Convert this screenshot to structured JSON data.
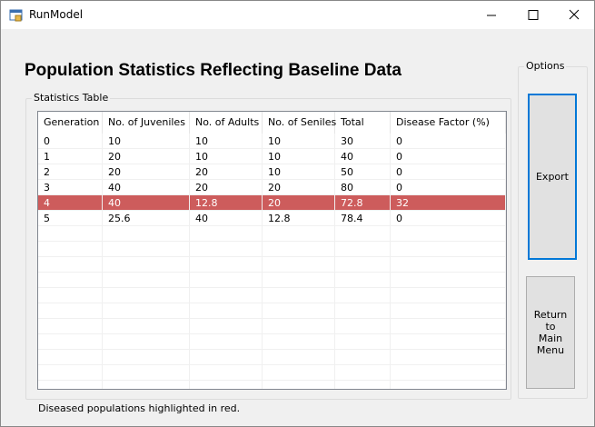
{
  "window": {
    "title": "RunModel"
  },
  "heading": "Population Statistics Reflecting Baseline Data",
  "table_group": {
    "label": "Statistics Table"
  },
  "table": {
    "columns": [
      "Generation",
      "No. of Juveniles",
      "No. of Adults",
      "No. of Seniles",
      "Total",
      "Disease Factor (%)"
    ],
    "rows": [
      [
        "0",
        "10",
        "10",
        "10",
        "30",
        "0"
      ],
      [
        "1",
        "20",
        "10",
        "10",
        "40",
        "0"
      ],
      [
        "2",
        "20",
        "20",
        "10",
        "50",
        "0"
      ],
      [
        "3",
        "40",
        "20",
        "20",
        "80",
        "0"
      ],
      [
        "4",
        "40",
        "12.8",
        "20",
        "72.8",
        "32"
      ],
      [
        "5",
        "25.6",
        "40",
        "12.8",
        "78.4",
        "0"
      ]
    ],
    "highlighted_rows": [
      4
    ],
    "highlight_color": "#cd5c5c"
  },
  "options_group": {
    "label": "Options",
    "buttons": [
      "Export",
      "Return to Main Menu"
    ]
  },
  "footer": "Diseased populations highlighted in red."
}
